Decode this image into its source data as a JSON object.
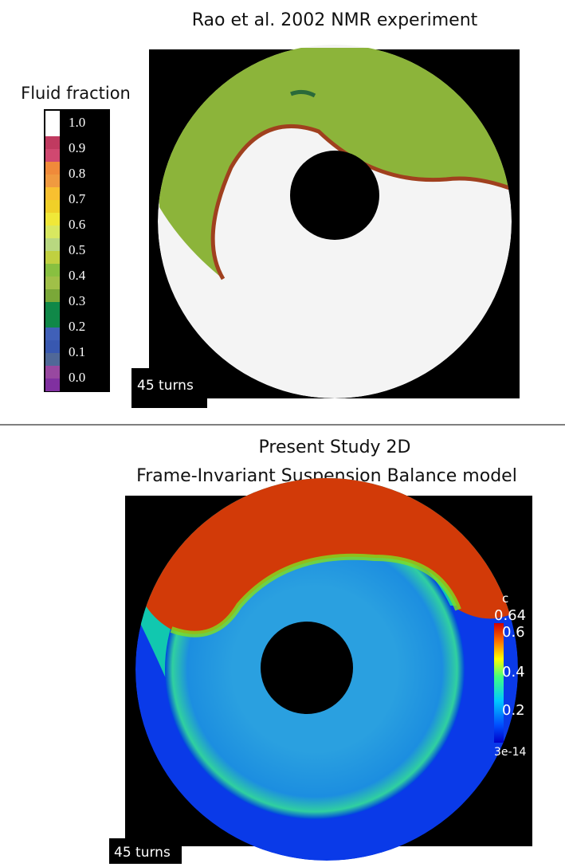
{
  "top_panel": {
    "title": "Rao et al. 2002 NMR experiment",
    "legend": {
      "title": "Fluid fraction",
      "labels": [
        "1.0",
        "0.9",
        "0.8",
        "0.7",
        "0.6",
        "0.5",
        "0.4",
        "0.3",
        "0.2",
        "0.1",
        "0.0"
      ]
    },
    "caption": "45 turns"
  },
  "bottom_panel": {
    "title_lines": [
      "Present Study 2D",
      "Frame-Invariant Suspension Balance model"
    ],
    "colorbar": {
      "title": "c",
      "labels": [
        "0.64",
        "0.6",
        "0.4",
        "0.2",
        "3e-14"
      ]
    },
    "caption": "45 turns"
  }
}
